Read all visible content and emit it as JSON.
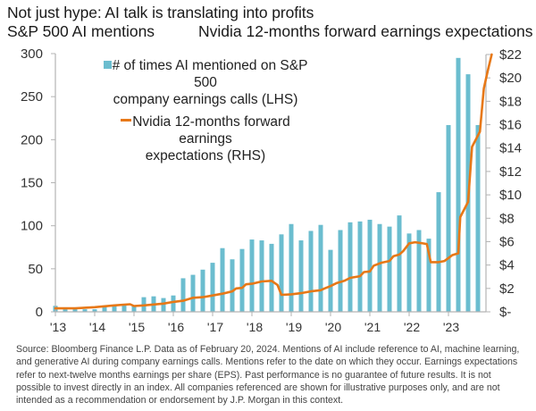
{
  "header": {
    "title": "Not just hype: AI talk is translating into profits",
    "subtitle_left": "S&P 500 AI mentions",
    "subtitle_right": "Nvidia 12-months forward earnings expectations"
  },
  "legend": {
    "bar_label_line1": "# of times AI mentioned on S&P 500",
    "bar_label_line2": "company earnings calls (LHS)",
    "line_label_line1": "Nvidia 12-months forward earnings",
    "line_label_line2": "expectations (RHS)"
  },
  "colors": {
    "bar": "#6bbdcf",
    "line": "#e77817",
    "axis": "#b3b3b3"
  },
  "footer": {
    "text": "Source: Bloomberg Finance L.P. Data as of February 20, 2024. Mentions of AI include reference to AI, machine learning, and generative AI during company earnings calls. Mentions refer to the date on which they occur. Earnings expectations refer to next-twelve months earnings per share (EPS). Past performance is no guarantee of future results. It is not possible to invest directly in an index. All companies referenced are shown for illustrative purposes only, and are not intended as a recommendation or endorsement by J.P. Morgan in this context."
  },
  "chart_data": {
    "type": "bar+line",
    "title": "Not just hype: AI talk is translating into profits",
    "xlabel": "",
    "x_ticks": [
      "'13",
      "'14",
      "'15",
      "'16",
      "'17",
      "'18",
      "'19",
      "'20",
      "'21",
      "'22",
      "'23"
    ],
    "x_range": [
      2013,
      2024
    ],
    "left_axis": {
      "label": "S&P 500 AI mentions",
      "ylim": [
        0,
        300
      ],
      "ticks": [
        0,
        50,
        100,
        150,
        200,
        250,
        300
      ],
      "tick_labels": [
        "0",
        "50",
        "100",
        "150",
        "200",
        "250",
        "300"
      ]
    },
    "right_axis": {
      "label": "Nvidia 12-months forward earnings expectations",
      "ylim": [
        0,
        22
      ],
      "ticks": [
        0,
        2,
        4,
        6,
        8,
        10,
        12,
        14,
        16,
        18,
        20,
        22
      ],
      "tick_labels": [
        "$-",
        "$2",
        "$4",
        "$6",
        "$8",
        "$10",
        "$12",
        "$14",
        "$16",
        "$18",
        "$20",
        "$22"
      ]
    },
    "grid": false,
    "legend_position": "top-left",
    "series": [
      {
        "name": "# of times AI mentioned on S&P 500 company earnings calls (LHS)",
        "type": "bar",
        "axis": "left",
        "x": [
          2013.0,
          2013.25,
          2013.5,
          2013.75,
          2014.0,
          2014.25,
          2014.5,
          2014.75,
          2015.0,
          2015.25,
          2015.5,
          2015.75,
          2016.0,
          2016.25,
          2016.5,
          2016.75,
          2017.0,
          2017.25,
          2017.5,
          2017.75,
          2018.0,
          2018.25,
          2018.5,
          2018.75,
          2019.0,
          2019.25,
          2019.5,
          2019.75,
          2020.0,
          2020.25,
          2020.5,
          2020.75,
          2021.0,
          2021.25,
          2021.5,
          2021.75,
          2022.0,
          2022.25,
          2022.5,
          2022.75,
          2023.0,
          2023.25,
          2023.5,
          2023.75
        ],
        "values": [
          7,
          3,
          4,
          3,
          3,
          6,
          8,
          9,
          7,
          17,
          18,
          16,
          19,
          39,
          43,
          49,
          57,
          74,
          61,
          73,
          84,
          83,
          79,
          90,
          102,
          83,
          94,
          101,
          72,
          95,
          104,
          105,
          107,
          102,
          99,
          112,
          91,
          95,
          85,
          139,
          217,
          295,
          276,
          217
        ]
      },
      {
        "name": "Nvidia 12-months forward earnings expectations (RHS)",
        "type": "line",
        "axis": "right",
        "points": [
          [
            2013.0,
            0.3
          ],
          [
            2013.5,
            0.3
          ],
          [
            2014.0,
            0.4
          ],
          [
            2014.5,
            0.55
          ],
          [
            2014.9,
            0.65
          ],
          [
            2015.0,
            0.5
          ],
          [
            2015.25,
            0.55
          ],
          [
            2015.75,
            0.7
          ],
          [
            2016.0,
            0.85
          ],
          [
            2016.25,
            0.95
          ],
          [
            2016.5,
            1.2
          ],
          [
            2016.75,
            1.25
          ],
          [
            2017.0,
            1.4
          ],
          [
            2017.25,
            1.55
          ],
          [
            2017.5,
            1.75
          ],
          [
            2017.6,
            2.0
          ],
          [
            2017.75,
            2.05
          ],
          [
            2017.85,
            2.35
          ],
          [
            2018.0,
            2.4
          ],
          [
            2018.25,
            2.6
          ],
          [
            2018.5,
            2.65
          ],
          [
            2018.65,
            2.3
          ],
          [
            2018.75,
            1.45
          ],
          [
            2019.0,
            1.5
          ],
          [
            2019.25,
            1.6
          ],
          [
            2019.5,
            1.75
          ],
          [
            2019.75,
            1.85
          ],
          [
            2019.85,
            2.0
          ],
          [
            2020.0,
            2.2
          ],
          [
            2020.15,
            2.45
          ],
          [
            2020.35,
            2.65
          ],
          [
            2020.5,
            2.9
          ],
          [
            2020.75,
            3.05
          ],
          [
            2020.85,
            3.4
          ],
          [
            2021.0,
            3.45
          ],
          [
            2021.1,
            3.95
          ],
          [
            2021.3,
            4.2
          ],
          [
            2021.5,
            4.35
          ],
          [
            2021.6,
            4.75
          ],
          [
            2021.75,
            4.9
          ],
          [
            2021.85,
            5.2
          ],
          [
            2022.0,
            5.85
          ],
          [
            2022.15,
            5.95
          ],
          [
            2022.35,
            5.85
          ],
          [
            2022.45,
            5.8
          ],
          [
            2022.55,
            4.25
          ],
          [
            2022.75,
            4.25
          ],
          [
            2022.9,
            4.35
          ],
          [
            2023.0,
            4.6
          ],
          [
            2023.1,
            4.85
          ],
          [
            2023.25,
            5.0
          ],
          [
            2023.3,
            8.1
          ],
          [
            2023.5,
            9.4
          ],
          [
            2023.6,
            14.1
          ],
          [
            2023.8,
            15.4
          ],
          [
            2023.9,
            19.1
          ],
          [
            2024.0,
            20.6
          ],
          [
            2024.1,
            22.0
          ]
        ]
      }
    ]
  }
}
